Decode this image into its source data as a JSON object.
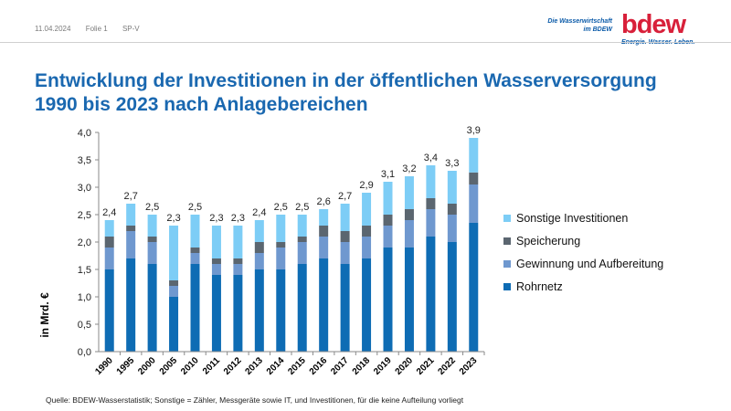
{
  "header": {
    "date": "11.04.2024",
    "slide": "Folie 1",
    "dept": "SP-V",
    "brand_tag_line1": "Die Wasserwirtschaft",
    "brand_tag_line2": "im BDEW",
    "logo_text": "bdew",
    "logo_slogan": "Energie. Wasser. Leben."
  },
  "title_line1": "Entwicklung der Investitionen in der öffentlichen Wasserversorgung",
  "title_line2": "1990 bis 2023 nach Anlagebereichen",
  "source": "Quelle: BDEW-Wasserstatistik; Sonstige = Zähler, Messgeräte sowie IT, und Investitionen, für die keine Aufteilung vorliegt",
  "chart_data": {
    "type": "bar",
    "stacked": true,
    "categories": [
      "1990",
      "1995",
      "2000",
      "2005",
      "2010",
      "2011",
      "2012",
      "2013",
      "2014",
      "2015",
      "2016",
      "2017",
      "2018",
      "2019",
      "2020",
      "2021",
      "2022",
      "2023"
    ],
    "series": [
      {
        "name": "Rohrnetz",
        "color": "#0e6cb4",
        "values": [
          1.5,
          1.7,
          1.6,
          1.0,
          1.6,
          1.4,
          1.4,
          1.5,
          1.5,
          1.6,
          1.7,
          1.6,
          1.7,
          1.9,
          1.9,
          2.1,
          2.0,
          2.35
        ]
      },
      {
        "name": "Gewinnung und Aufbereitung",
        "color": "#6f98cf",
        "values": [
          0.4,
          0.5,
          0.4,
          0.2,
          0.2,
          0.2,
          0.2,
          0.3,
          0.4,
          0.4,
          0.4,
          0.4,
          0.4,
          0.4,
          0.5,
          0.5,
          0.5,
          0.7
        ]
      },
      {
        "name": "Speicherung",
        "color": "#5b6670",
        "values": [
          0.2,
          0.1,
          0.1,
          0.1,
          0.1,
          0.1,
          0.1,
          0.2,
          0.1,
          0.1,
          0.2,
          0.2,
          0.2,
          0.2,
          0.2,
          0.2,
          0.2,
          0.22
        ]
      },
      {
        "name": "Sonstige Investitionen",
        "color": "#7dcdf6",
        "values": [
          0.3,
          0.4,
          0.4,
          1.0,
          0.6,
          0.6,
          0.6,
          0.4,
          0.5,
          0.4,
          0.3,
          0.5,
          0.6,
          0.6,
          0.6,
          0.6,
          0.6,
          0.63
        ]
      }
    ],
    "totals": [
      "2,4",
      "2,7",
      "2,5",
      "2,3",
      "2,5",
      "2,3",
      "2,3",
      "2,4",
      "2,5",
      "2,5",
      "2,6",
      "2,7",
      "2,9",
      "3,1",
      "3,2",
      "3,4",
      "3,3",
      "3,9"
    ],
    "ylabel": "in Mrd. €",
    "ylim": [
      0,
      4
    ],
    "yticks": [
      "0,0",
      "0,5",
      "1,0",
      "1,5",
      "2,0",
      "2,5",
      "3,0",
      "3,5",
      "4,0"
    ],
    "legend_position": "right",
    "grid": false
  }
}
